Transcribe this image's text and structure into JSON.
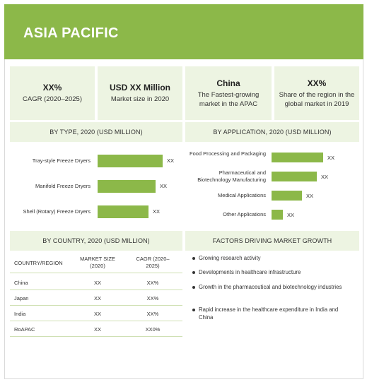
{
  "header": {
    "title": "ASIA PACIFIC"
  },
  "kpis": [
    {
      "value": "XX%",
      "label": "CAGR (2020–2025)"
    },
    {
      "value": "USD XX Million",
      "label": "Market size in 2020"
    },
    {
      "value": "China",
      "label": "The Fastest-growing market in the APAC"
    },
    {
      "value": "XX%",
      "label": "Share of the region in the global market in 2019"
    }
  ],
  "by_type": {
    "title": "BY TYPE, 2020 (USD MILLION)",
    "items": [
      {
        "label": "Tray-style Freeze Dryers",
        "value_text": "XX",
        "value": 0.92
      },
      {
        "label": "Manifold Freeze Dryers",
        "value_text": "XX",
        "value": 0.82
      },
      {
        "label": "Shell (Rotary) Freeze Dryers",
        "value_text": "XX",
        "value": 0.72
      }
    ]
  },
  "by_application": {
    "title": "BY APPLICATION, 2020 (USD MILLION)",
    "items": [
      {
        "label": "Food Processing and Packaging",
        "value_text": "XX",
        "value": 0.98
      },
      {
        "label": "Pharmaceutical and Biotechnology Manufacturing",
        "value_text": "XX",
        "value": 0.86
      },
      {
        "label": "Medical Applications",
        "value_text": "XX",
        "value": 0.58
      },
      {
        "label": "Other Applications",
        "value_text": "XX",
        "value": 0.22
      }
    ]
  },
  "by_country": {
    "title": "BY COUNTRY, 2020 (USD MILLION)",
    "columns": [
      "COUNTRY/REGION",
      "MARKET SIZE (2020)",
      "CAGR (2020–2025)"
    ],
    "rows": [
      [
        "China",
        "XX",
        "XX%"
      ],
      [
        "Japan",
        "XX",
        "XX%"
      ],
      [
        "India",
        "XX",
        "XX%"
      ],
      [
        "RoAPAC",
        "XX",
        "XX0%"
      ]
    ]
  },
  "factors": {
    "title": "FACTORS DRIVING MARKET GROWTH",
    "items": [
      "Growing research activity",
      "Developments in healthcare infrastructure",
      "Growth in the pharmaceutical and biotechnology industries",
      "Rapid increase in the healthcare expenditure in India and China"
    ]
  },
  "colors": {
    "accent": "#8cb849",
    "panel": "#edf4e2"
  }
}
